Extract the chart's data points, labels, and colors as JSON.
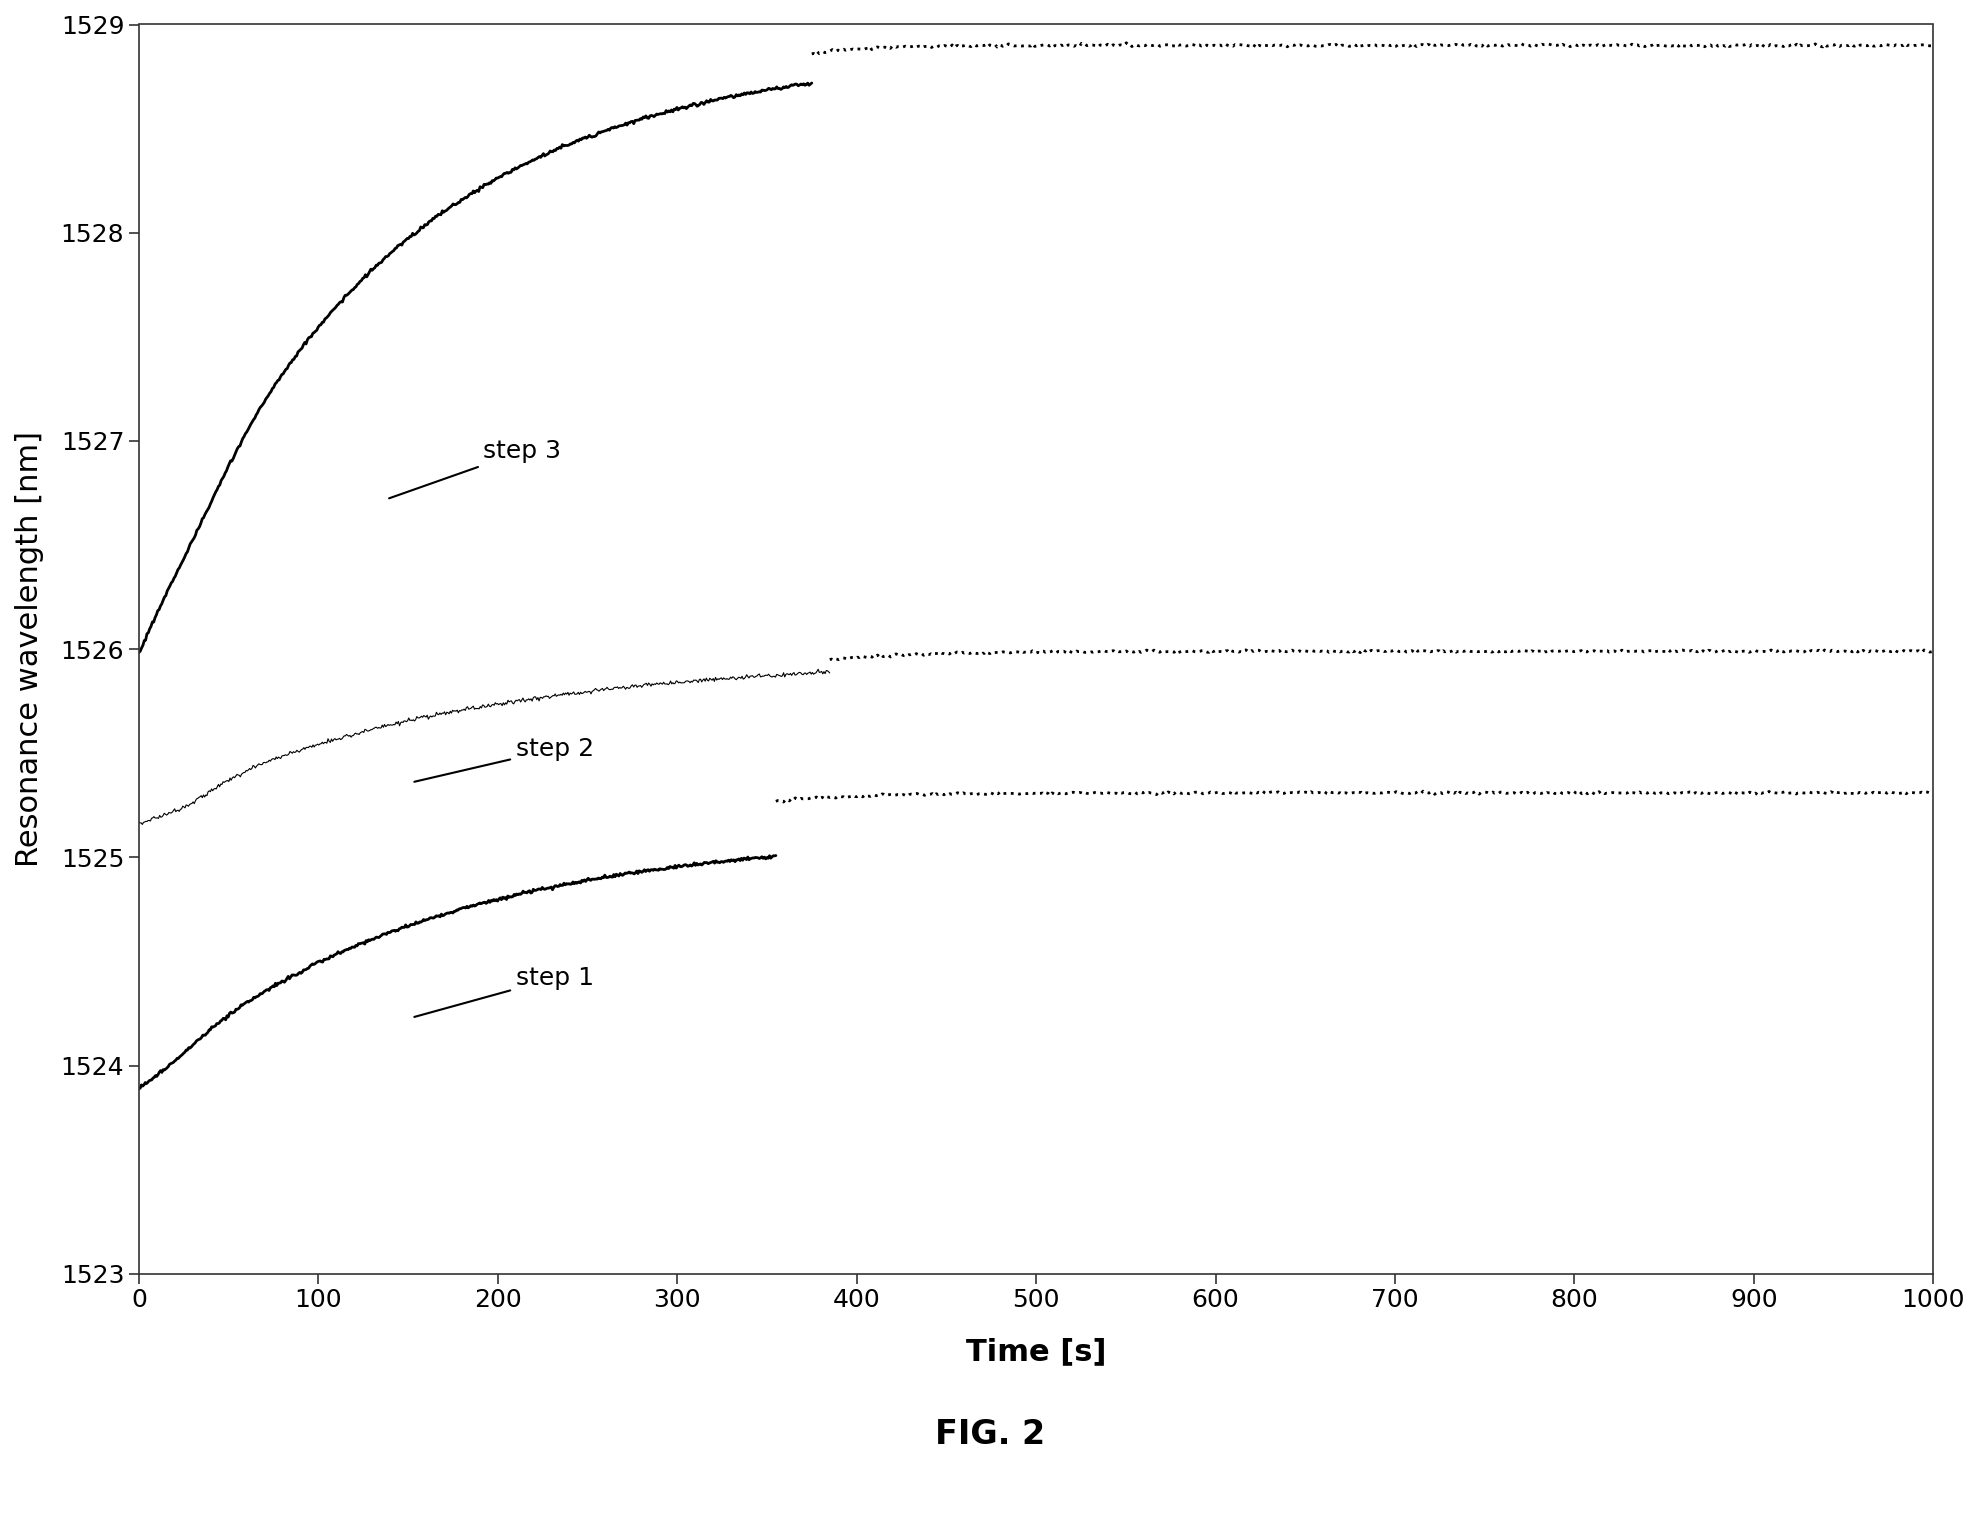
{
  "title": "FIG. 2",
  "xlabel": "Time [s]",
  "ylabel": "Resonance wavelength [nm]",
  "xlim": [
    0,
    1000
  ],
  "ylim": [
    1523,
    1529
  ],
  "xticks": [
    0,
    100,
    200,
    300,
    400,
    500,
    600,
    700,
    800,
    900,
    1000
  ],
  "yticks": [
    1523,
    1524,
    1525,
    1526,
    1527,
    1528,
    1529
  ],
  "background_color": "#ffffff",
  "line_color": "#000000",
  "step1_label": "step 1",
  "step2_label": "step 2",
  "step3_label": "step 3",
  "solid_linewidth": 2.0,
  "dotted_linewidth": 2.0,
  "step2_thin_linewidth": 0.8,
  "annot_fontsize": 18,
  "tick_labelsize": 18,
  "axis_labelsize": 22,
  "title_fontsize": 24,
  "figsize": [
    19.8,
    15.18
  ],
  "dpi": 100
}
